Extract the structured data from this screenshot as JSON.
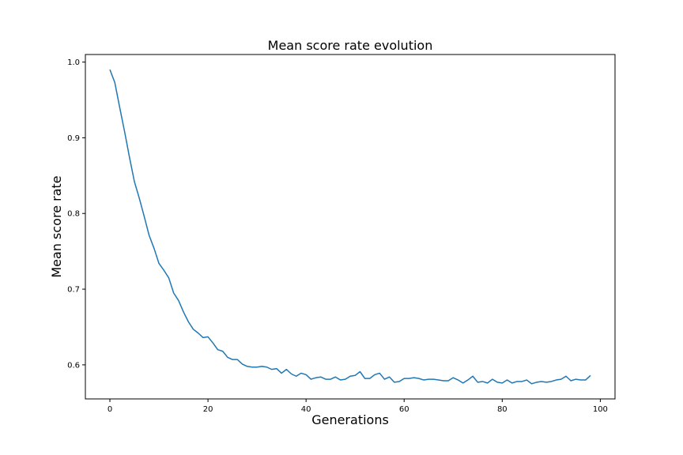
{
  "chart_data": {
    "type": "line",
    "title": "Mean score rate evolution",
    "xlabel": "Generations",
    "ylabel": "Mean score rate",
    "xlim": [
      -5,
      103
    ],
    "ylim": [
      0.555,
      1.01
    ],
    "xticks": [
      0,
      20,
      40,
      60,
      80,
      100
    ],
    "yticks": [
      0.6,
      0.7,
      0.8,
      0.9,
      1.0
    ],
    "ytick_labels": [
      "0.6",
      "0.7",
      "0.8",
      "0.9",
      "1.0"
    ],
    "grid": false,
    "series": [
      {
        "color": "#1f77b4",
        "x": [
          0,
          1,
          2,
          3,
          4,
          5,
          6,
          7,
          8,
          9,
          10,
          11,
          12,
          13,
          14,
          15,
          16,
          17,
          18,
          19,
          20,
          21,
          22,
          23,
          24,
          25,
          26,
          27,
          28,
          29,
          30,
          31,
          32,
          33,
          34,
          35,
          36,
          37,
          38,
          39,
          40,
          41,
          42,
          43,
          44,
          45,
          46,
          47,
          48,
          49,
          50,
          51,
          52,
          53,
          54,
          55,
          56,
          57,
          58,
          59,
          60,
          61,
          62,
          63,
          64,
          65,
          66,
          67,
          68,
          69,
          70,
          71,
          72,
          73,
          74,
          75,
          76,
          77,
          78,
          79,
          80,
          81,
          82,
          83,
          84,
          85,
          86,
          87,
          88,
          89,
          90,
          91,
          92,
          93,
          94,
          95,
          96,
          97,
          98
        ],
        "y": [
          0.99,
          0.973,
          0.94,
          0.908,
          0.874,
          0.842,
          0.82,
          0.796,
          0.771,
          0.754,
          0.734,
          0.725,
          0.715,
          0.695,
          0.685,
          0.67,
          0.657,
          0.647,
          0.642,
          0.636,
          0.637,
          0.629,
          0.62,
          0.618,
          0.61,
          0.607,
          0.607,
          0.601,
          0.598,
          0.597,
          0.597,
          0.598,
          0.597,
          0.594,
          0.595,
          0.589,
          0.594,
          0.588,
          0.585,
          0.589,
          0.587,
          0.581,
          0.583,
          0.584,
          0.581,
          0.581,
          0.584,
          0.58,
          0.581,
          0.585,
          0.586,
          0.591,
          0.582,
          0.582,
          0.587,
          0.589,
          0.581,
          0.584,
          0.577,
          0.578,
          0.582,
          0.582,
          0.583,
          0.582,
          0.58,
          0.581,
          0.581,
          0.58,
          0.579,
          0.579,
          0.583,
          0.58,
          0.576,
          0.58,
          0.585,
          0.577,
          0.578,
          0.576,
          0.581,
          0.577,
          0.576,
          0.58,
          0.576,
          0.578,
          0.578,
          0.58,
          0.575,
          0.577,
          0.578,
          0.577,
          0.578,
          0.58,
          0.581,
          0.585,
          0.579,
          0.581,
          0.58,
          0.58,
          0.586
        ]
      }
    ]
  }
}
